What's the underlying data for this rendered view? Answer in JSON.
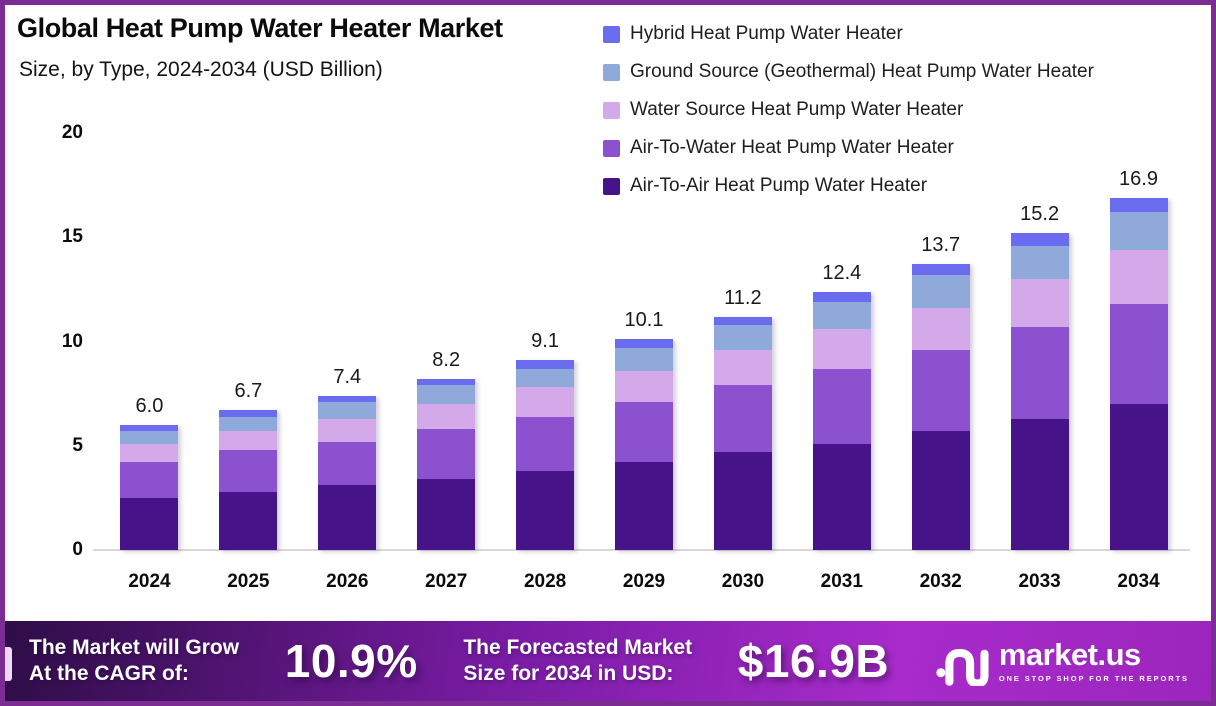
{
  "header": {
    "title": "Global Heat Pump Water Heater Market",
    "subtitle": "Size, by Type, 2024-2034 (USD Billion)"
  },
  "chart_data": {
    "type": "bar",
    "stacked": true,
    "title": "Global Heat Pump Water Heater Market Size, by Type, 2024-2034 (USD Billion)",
    "xlabel": "",
    "ylabel": "USD Billion",
    "ylim": [
      0,
      20
    ],
    "y_ticks": [
      0,
      5,
      10,
      15,
      20
    ],
    "grid": false,
    "legend_position": "top-right",
    "categories": [
      "2024",
      "2025",
      "2026",
      "2027",
      "2028",
      "2029",
      "2030",
      "2031",
      "2032",
      "2033",
      "2034"
    ],
    "totals_labels": [
      "6.0",
      "6.7",
      "7.4",
      "8.2",
      "9.1",
      "10.1",
      "11.2",
      "12.4",
      "13.7",
      "15.2",
      "16.9"
    ],
    "series": [
      {
        "name": "Hybrid Heat Pump Water Heater",
        "color": "#6B6BF0",
        "values": [
          0.3,
          0.3,
          0.3,
          0.3,
          0.4,
          0.4,
          0.4,
          0.5,
          0.5,
          0.6,
          0.7
        ]
      },
      {
        "name": "Ground Source (Geothermal) Heat Pump Water Heater",
        "color": "#8EA9DA",
        "values": [
          0.6,
          0.7,
          0.8,
          0.9,
          0.9,
          1.1,
          1.2,
          1.3,
          1.6,
          1.6,
          1.8
        ]
      },
      {
        "name": "Water Source Heat Pump Water Heater",
        "color": "#D3A9E9",
        "values": [
          0.9,
          0.9,
          1.1,
          1.2,
          1.4,
          1.5,
          1.7,
          1.9,
          2.0,
          2.3,
          2.6
        ]
      },
      {
        "name": "Air-To-Water Heat Pump Water Heater",
        "color": "#8B51CE",
        "values": [
          1.7,
          2.0,
          2.1,
          2.4,
          2.6,
          2.9,
          3.2,
          3.6,
          3.9,
          4.4,
          4.8
        ]
      },
      {
        "name": "Air-To-Air Heat Pump Water Heater",
        "color": "#471389",
        "values": [
          2.5,
          2.8,
          3.1,
          3.4,
          3.8,
          4.2,
          4.7,
          5.1,
          5.7,
          6.3,
          7.0
        ]
      }
    ]
  },
  "banner": {
    "cagr_label_line1": "The Market will Grow",
    "cagr_label_line2": "At the CAGR of:",
    "cagr_value": "10.9%",
    "forecast_label_line1": "The Forecasted Market",
    "forecast_label_line2": "Size for 2034 in USD:",
    "forecast_value": "$16.9B",
    "logo": {
      "name": "market.us",
      "tagline": "ONE STOP SHOP FOR THE REPORTS"
    }
  },
  "colors": {
    "frame_border": "#7B2D94",
    "banner_gradient": [
      "#2E0D47",
      "#7A1CA5",
      "#A82BCB",
      "#9C26BD"
    ],
    "axis_line": "#D9D9D9",
    "accent_stripe": "#EFD9F6",
    "text": "#0B0B0B"
  }
}
